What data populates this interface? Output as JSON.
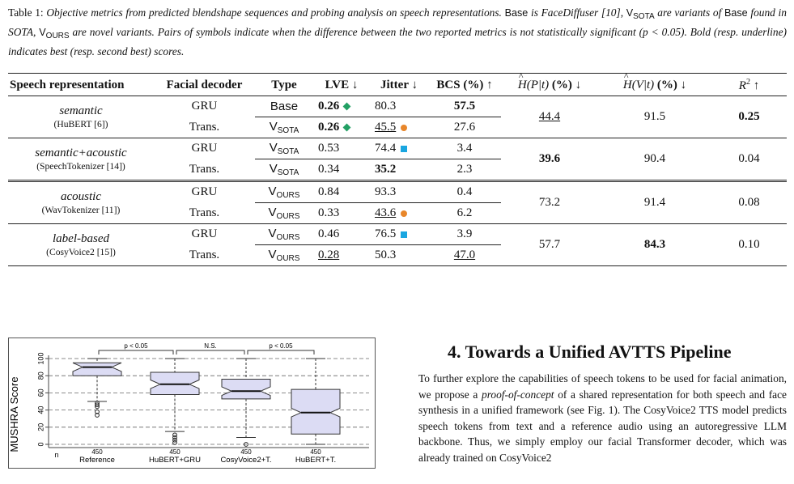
{
  "caption": {
    "label": "Table 1:",
    "t1": "Objective metrics from predicted blendshape sequences and probing analysis on speech representations.",
    "base_word": "Base",
    "t2": "is FaceDiffuser [10],",
    "vsota": "V",
    "vsota_sub": "SOTA",
    "t3": "are variants of",
    "base_word2": "Base",
    "t4": "found in SOTA,",
    "vours": "V",
    "vours_sub": "OURS",
    "t5": "are novel variants. Pairs of symbols indicate when the difference between the two reported metrics is not statistically significant (p < 0.05). Bold (resp. underline) indicates best (resp. second best) scores."
  },
  "table": {
    "headers": {
      "speech_rep": "Speech representation",
      "decoder": "Facial decoder",
      "type": "Type",
      "lve": "LVE ↓",
      "jitter": "Jitter ↓",
      "bcs": "BCS (%) ↑",
      "hp_pre": "H(",
      "hp_sym": "P",
      "hp_post": "|t) (%) ↓",
      "hv_pre": "H(",
      "hv_sym": "V",
      "hv_post": "|t) (%) ↓",
      "r2": "R",
      "r2_exp": "2",
      "r2_arrow": "↑"
    },
    "groups": [
      {
        "name": "semantic",
        "ref": "(HuBERT [6])",
        "hp": "44.4",
        "hv": "91.5",
        "r2": "0.25",
        "rows": [
          {
            "decoder": "GRU",
            "type": "Base",
            "type_sub": "",
            "lve": "0.26",
            "jitter": "80.3",
            "bcs": "57.5"
          },
          {
            "decoder": "Trans.",
            "type": "V",
            "type_sub": "SOTA",
            "lve": "0.26",
            "jitter": "45.5",
            "bcs": "27.6"
          }
        ]
      },
      {
        "name": "semantic+acoustic",
        "ref": "(SpeechTokenizer [14])",
        "hp": "39.6",
        "hv": "90.4",
        "r2": "0.04",
        "rows": [
          {
            "decoder": "GRU",
            "type": "V",
            "type_sub": "SOTA",
            "lve": "0.53",
            "jitter": "74.4",
            "bcs": "3.4"
          },
          {
            "decoder": "Trans.",
            "type": "V",
            "type_sub": "SOTA",
            "lve": "0.34",
            "jitter": "35.2",
            "bcs": "2.3"
          }
        ]
      },
      {
        "name": "acoustic",
        "ref": "(WavTokenizer [11])",
        "hp": "73.2",
        "hv": "91.4",
        "r2": "0.08",
        "rows": [
          {
            "decoder": "GRU",
            "type": "V",
            "type_sub": "OURS",
            "lve": "0.84",
            "jitter": "93.3",
            "bcs": "0.4"
          },
          {
            "decoder": "Trans.",
            "type": "V",
            "type_sub": "OURS",
            "lve": "0.33",
            "jitter": "43.6",
            "bcs": "6.2"
          }
        ]
      },
      {
        "name": "label-based",
        "ref": "(CosyVoice2 [15])",
        "hp": "57.7",
        "hv": "84.3",
        "r2": "0.10",
        "rows": [
          {
            "decoder": "GRU",
            "type": "V",
            "type_sub": "OURS",
            "lve": "0.46",
            "jitter": "76.5",
            "bcs": "3.9"
          },
          {
            "decoder": "Trans.",
            "type": "V",
            "type_sub": "OURS",
            "lve": "0.28",
            "jitter": "50.3",
            "bcs": "47.0"
          }
        ]
      }
    ],
    "marker_colors": {
      "diamond": "#22a064",
      "dot": "#e8862a",
      "square": "#1aa6e0"
    }
  },
  "chart_data": {
    "type": "boxplot",
    "ylabel": "MUSHRA Score",
    "ylim": [
      0,
      100
    ],
    "yticks": [
      "0",
      "20",
      "40",
      "60",
      "80",
      "100"
    ],
    "n_label": "n",
    "categories": [
      "Reference",
      "HuBERT+GRU",
      "CosyVoice2+T.",
      "HuBERT+T."
    ],
    "n": [
      "450",
      "450",
      "450",
      "450"
    ],
    "boxes": [
      {
        "whisker_low": 50,
        "q1": 80,
        "median": 90,
        "q3": 95,
        "whisker_high": 100,
        "outliers": [
          48,
          46,
          44,
          38,
          34
        ]
      },
      {
        "whisker_low": 15,
        "q1": 58,
        "median": 70,
        "q3": 84,
        "whisker_high": 100,
        "outliers": [
          11,
          8,
          5,
          2
        ]
      },
      {
        "whisker_low": 8,
        "q1": 53,
        "median": 62,
        "q3": 76,
        "whisker_high": 100,
        "outliers": [
          0
        ]
      },
      {
        "whisker_low": 0,
        "q1": 12,
        "median": 37,
        "q3": 64,
        "whisker_high": 100,
        "outliers": []
      }
    ],
    "brackets": [
      {
        "from": 0,
        "to": 1,
        "label": "p < 0.05"
      },
      {
        "from": 1,
        "to": 2,
        "label": "N.S."
      },
      {
        "from": 2,
        "to": 3,
        "label": "p < 0.05"
      }
    ],
    "box_fill": "#dcdcf4"
  },
  "section": {
    "heading": "4.  Towards a Unified AVTTS Pipeline",
    "p1": "To further explore the capabilities of speech tokens to be used for facial animation, we propose a",
    "p1_italic": "proof-of-concept",
    "p2": "of a shared representation for both speech and face synthesis in a unified framework (see Fig. 1). The CosyVoice2 TTS model predicts speech tokens from text and a reference audio using an autoregressive LLM backbone. Thus, we simply employ our facial Transformer decoder, which was already trained on CosyVoice2"
  }
}
